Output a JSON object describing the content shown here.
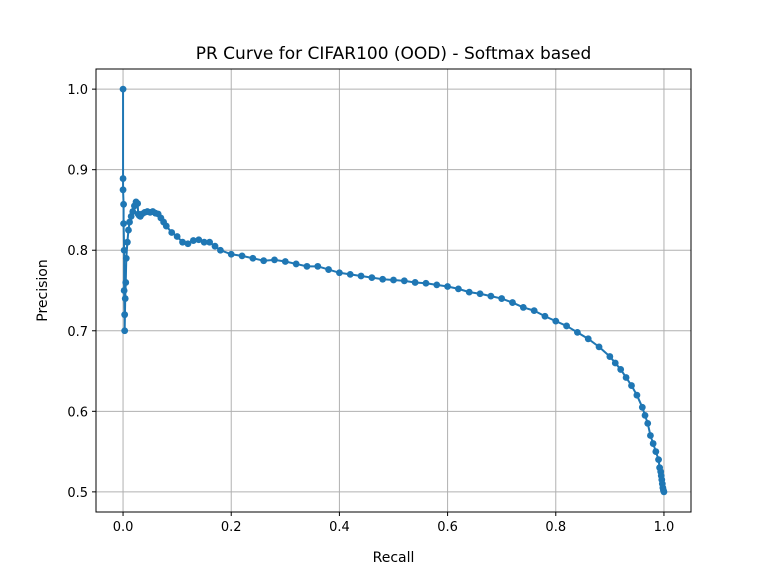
{
  "chart_data": {
    "type": "line",
    "title": "PR Curve for CIFAR100 (OOD) - Softmax based",
    "xlabel": "Recall",
    "ylabel": "Precision",
    "xlim": [
      -0.05,
      1.05
    ],
    "ylim": [
      0.475,
      1.025
    ],
    "xticks": [
      0.0,
      0.2,
      0.4,
      0.6,
      0.8,
      1.0
    ],
    "xtick_labels": [
      "0.0",
      "0.2",
      "0.4",
      "0.6",
      "0.8",
      "1.0"
    ],
    "yticks": [
      0.5,
      0.6,
      0.7,
      0.8,
      0.9,
      1.0
    ],
    "ytick_labels": [
      "0.5",
      "0.6",
      "0.7",
      "0.8",
      "0.9",
      "1.0"
    ],
    "grid": true,
    "marker": "circle",
    "color": "#1f77b4",
    "series": [
      {
        "x": [
          0.0,
          0.0,
          0.0,
          0.001,
          0.001,
          0.002,
          0.002,
          0.003,
          0.003,
          0.004,
          0.005,
          0.006,
          0.008,
          0.01,
          0.012,
          0.015,
          0.018,
          0.021,
          0.024,
          0.027,
          0.028,
          0.03,
          0.032,
          0.035,
          0.04,
          0.045,
          0.05,
          0.055,
          0.06,
          0.065,
          0.07,
          0.075,
          0.08,
          0.09,
          0.1,
          0.11,
          0.12,
          0.13,
          0.14,
          0.15,
          0.16,
          0.17,
          0.18,
          0.2,
          0.22,
          0.24,
          0.26,
          0.28,
          0.3,
          0.32,
          0.34,
          0.36,
          0.38,
          0.4,
          0.42,
          0.44,
          0.46,
          0.48,
          0.5,
          0.52,
          0.54,
          0.56,
          0.58,
          0.6,
          0.62,
          0.64,
          0.66,
          0.68,
          0.7,
          0.72,
          0.74,
          0.76,
          0.78,
          0.8,
          0.82,
          0.84,
          0.86,
          0.88,
          0.9,
          0.91,
          0.92,
          0.93,
          0.94,
          0.95,
          0.96,
          0.965,
          0.97,
          0.975,
          0.98,
          0.985,
          0.99,
          0.992,
          0.994,
          0.995,
          0.996,
          0.997,
          0.998,
          0.999,
          1.0
        ],
        "y": [
          1.0,
          0.889,
          0.875,
          0.857,
          0.833,
          0.8,
          0.75,
          0.72,
          0.7,
          0.74,
          0.76,
          0.79,
          0.81,
          0.825,
          0.835,
          0.842,
          0.848,
          0.855,
          0.86,
          0.858,
          0.845,
          0.843,
          0.842,
          0.845,
          0.847,
          0.848,
          0.847,
          0.848,
          0.846,
          0.845,
          0.84,
          0.835,
          0.83,
          0.822,
          0.817,
          0.81,
          0.808,
          0.812,
          0.813,
          0.81,
          0.81,
          0.805,
          0.8,
          0.795,
          0.793,
          0.79,
          0.787,
          0.788,
          0.786,
          0.783,
          0.78,
          0.78,
          0.776,
          0.772,
          0.77,
          0.768,
          0.766,
          0.764,
          0.763,
          0.762,
          0.76,
          0.759,
          0.757,
          0.755,
          0.752,
          0.748,
          0.746,
          0.743,
          0.74,
          0.735,
          0.729,
          0.725,
          0.718,
          0.712,
          0.706,
          0.698,
          0.69,
          0.68,
          0.668,
          0.66,
          0.652,
          0.642,
          0.632,
          0.62,
          0.605,
          0.595,
          0.585,
          0.57,
          0.56,
          0.55,
          0.54,
          0.53,
          0.525,
          0.52,
          0.515,
          0.51,
          0.505,
          0.502,
          0.5
        ]
      }
    ]
  }
}
